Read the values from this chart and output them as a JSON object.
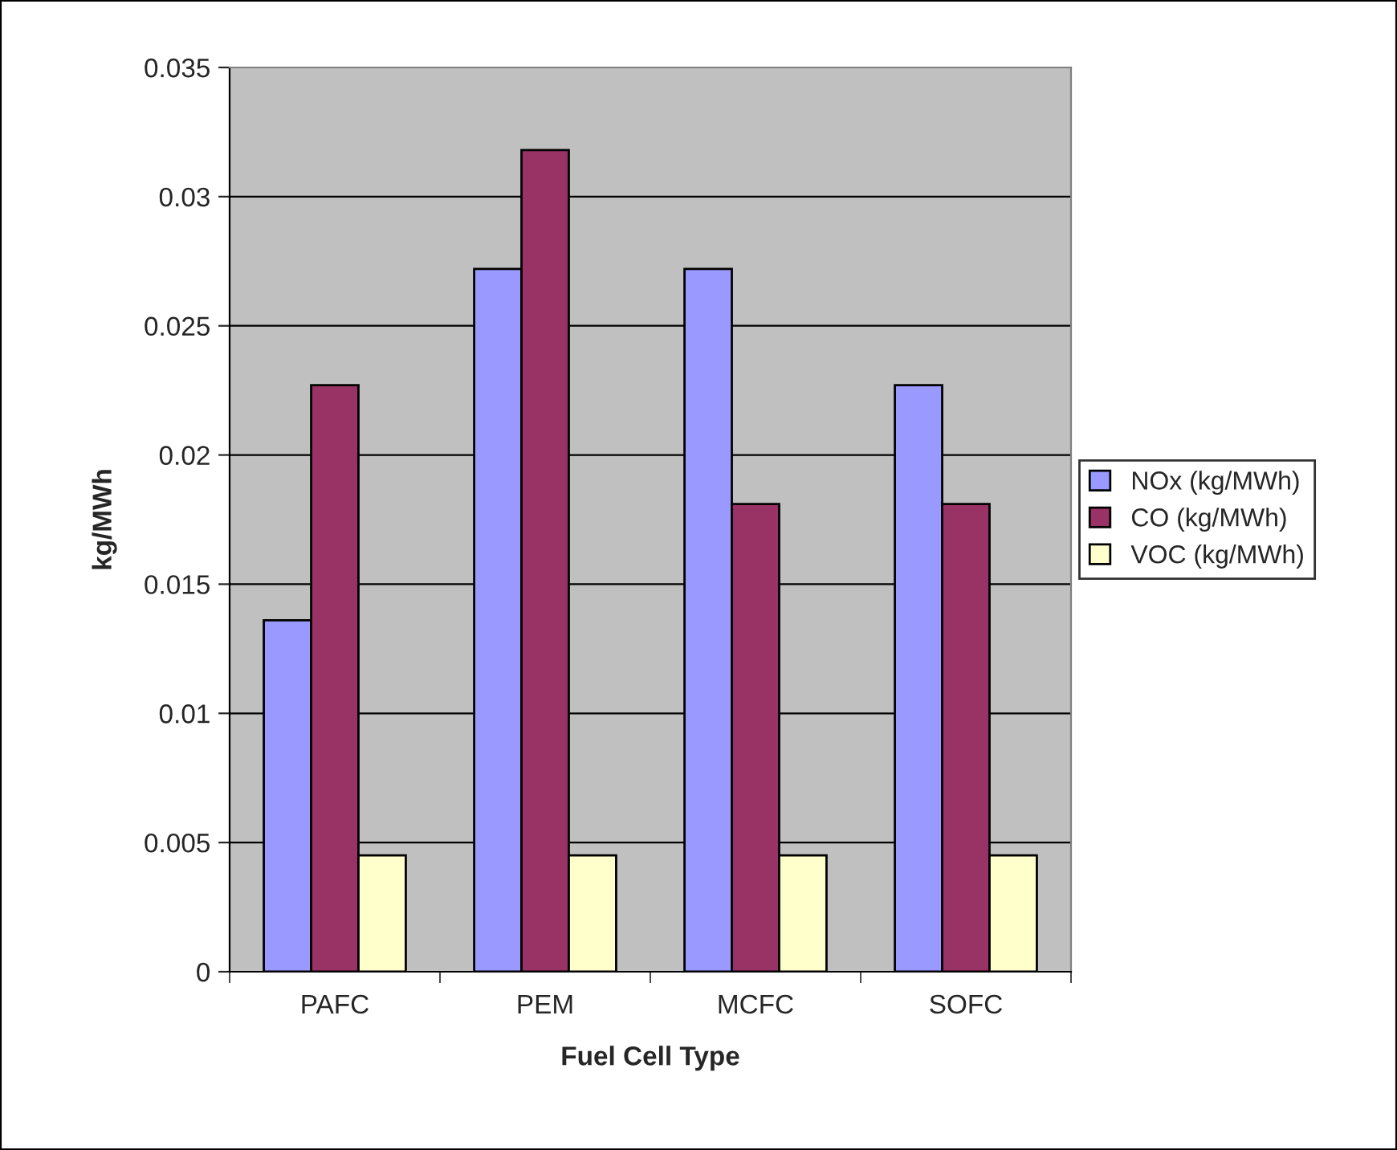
{
  "chart_data": {
    "type": "bar",
    "xlabel": "Fuel Cell Type",
    "ylabel": "kg/MWh",
    "categories": [
      "PAFC",
      "PEM",
      "MCFC",
      "SOFC"
    ],
    "series": [
      {
        "name": "NOx (kg/MWh)",
        "color": "#9999ff",
        "values": [
          0.0136,
          0.0272,
          0.0272,
          0.0227
        ]
      },
      {
        "name": "CO (kg/MWh)",
        "color": "#993366",
        "values": [
          0.0227,
          0.0318,
          0.0181,
          0.0181
        ]
      },
      {
        "name": "VOC (kg/MWh)",
        "color": "#ffffcc",
        "values": [
          0.0045,
          0.0045,
          0.0045,
          0.0045
        ]
      }
    ],
    "ylim": [
      0,
      0.035
    ],
    "yticks": [
      0,
      0.005,
      0.01,
      0.015,
      0.02,
      0.025,
      0.03,
      0.035
    ],
    "grid": "y",
    "legend": "right"
  }
}
